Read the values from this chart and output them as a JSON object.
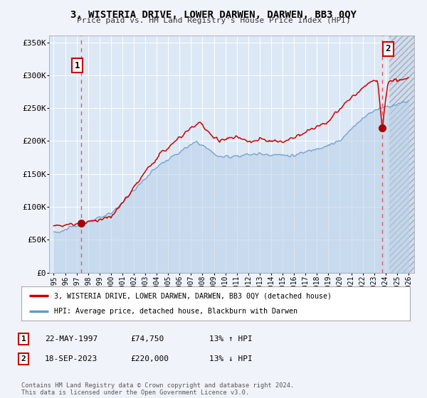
{
  "title": "3, WISTERIA DRIVE, LOWER DARWEN, DARWEN, BB3 0QY",
  "subtitle": "Price paid vs. HM Land Registry's House Price Index (HPI)",
  "legend_line1": "3, WISTERIA DRIVE, LOWER DARWEN, DARWEN, BB3 0QY (detached house)",
  "legend_line2": "HPI: Average price, detached house, Blackburn with Darwen",
  "annotation1_label": "1",
  "annotation1_date": "22-MAY-1997",
  "annotation1_price": "£74,750",
  "annotation1_hpi": "13% ↑ HPI",
  "annotation2_label": "2",
  "annotation2_date": "18-SEP-2023",
  "annotation2_price": "£220,000",
  "annotation2_hpi": "13% ↓ HPI",
  "footer": "Contains HM Land Registry data © Crown copyright and database right 2024.\nThis data is licensed under the Open Government Licence v3.0.",
  "ylim": [
    0,
    360000
  ],
  "yticks": [
    0,
    50000,
    100000,
    150000,
    200000,
    250000,
    300000,
    350000
  ],
  "ytick_labels": [
    "£0",
    "£50K",
    "£100K",
    "£150K",
    "£200K",
    "£250K",
    "£300K",
    "£350K"
  ],
  "sale1_year": 1997.38,
  "sale1_price": 74750,
  "sale2_year": 2023.71,
  "sale2_price": 220000,
  "background_color": "#f0f4fa",
  "plot_bg": "#dce8f5",
  "line_color_red": "#cc0000",
  "line_color_blue": "#6699cc",
  "fill_color_blue": "#b8d0e8",
  "vline_color": "#ee4444",
  "marker_color": "#aa0000",
  "hatch_color": "#aabbcc"
}
